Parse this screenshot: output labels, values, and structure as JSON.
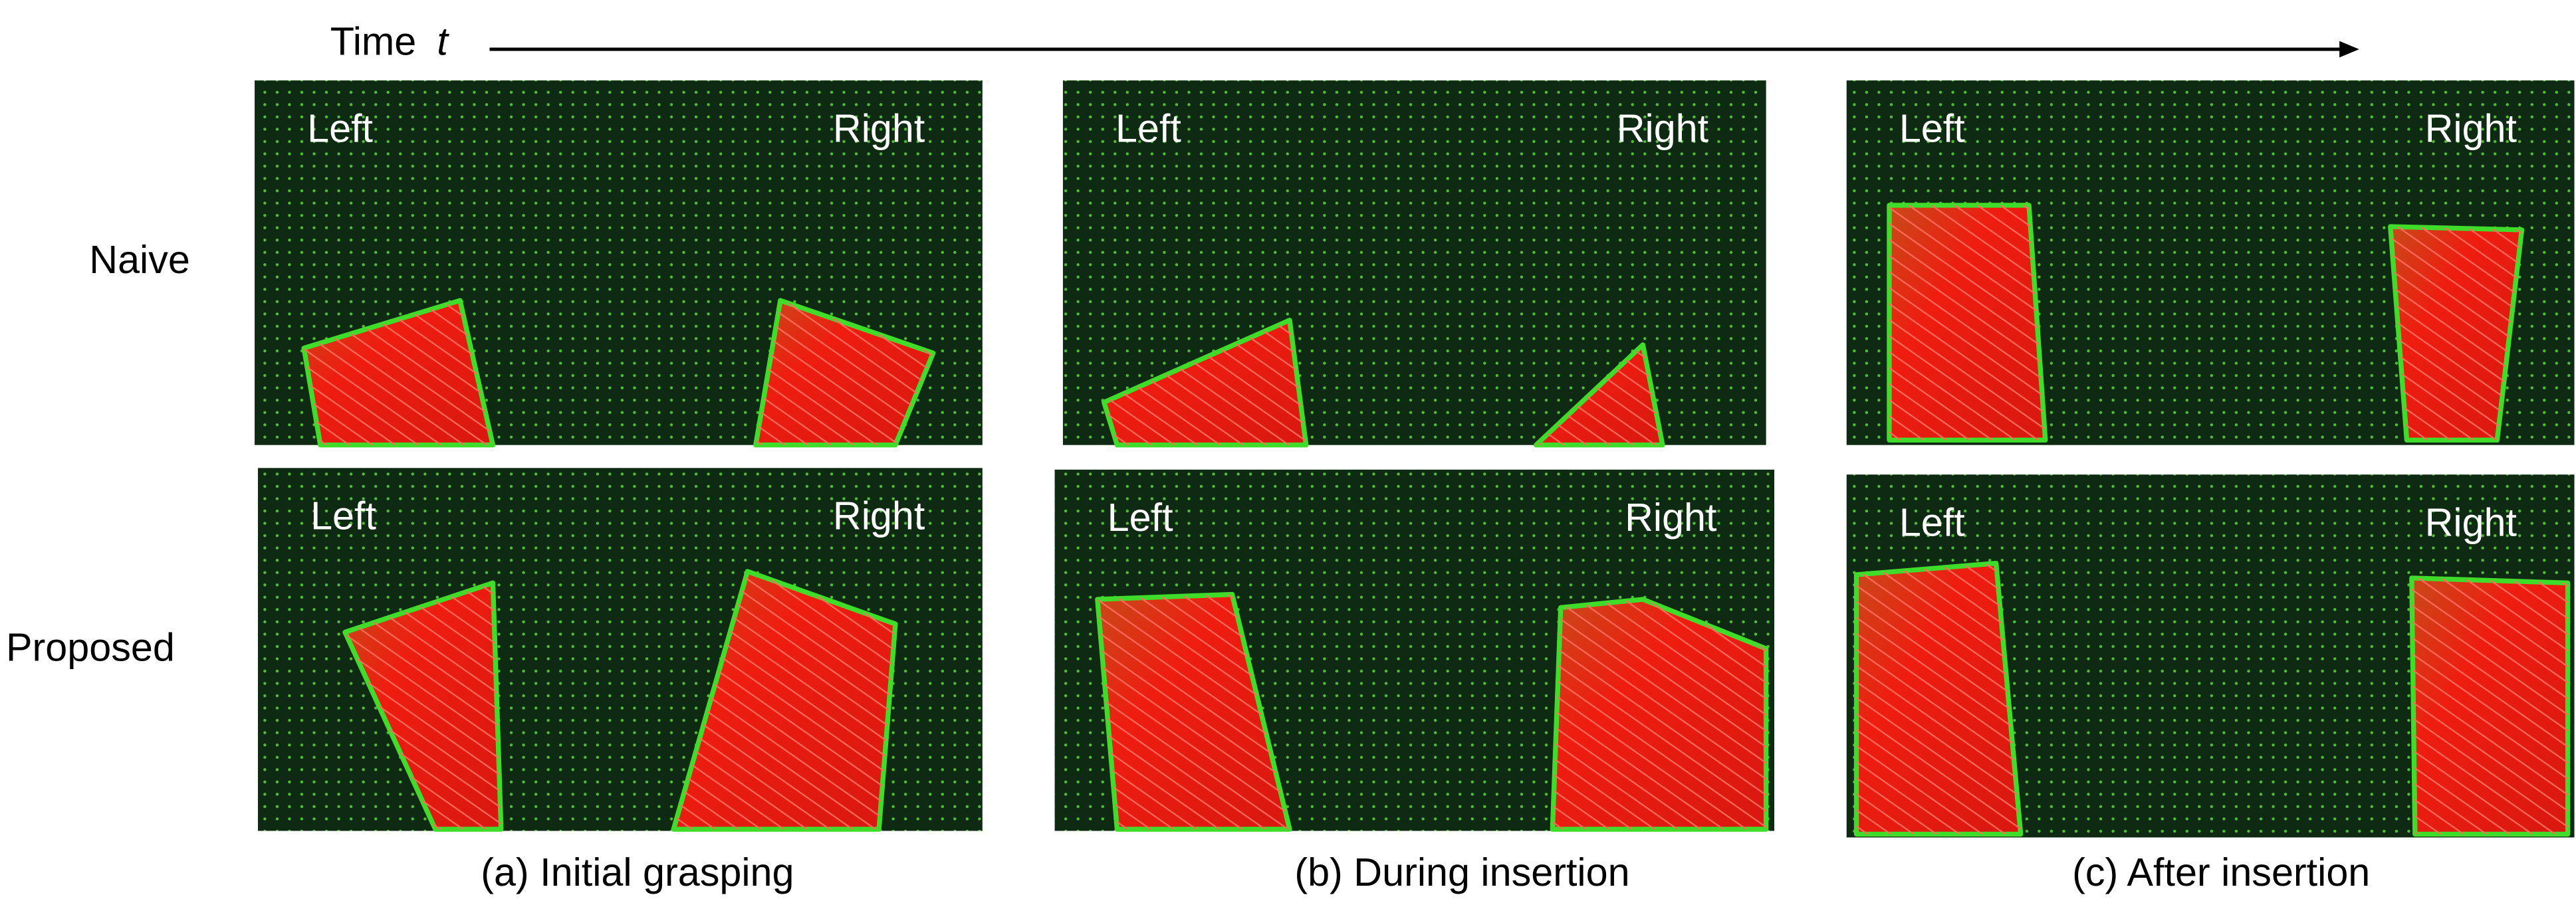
{
  "header": {
    "time_label": "Time",
    "time_symbol": "t"
  },
  "rows": [
    "Naive",
    "Proposed"
  ],
  "panels": [
    {
      "left": "Left",
      "right": "Right"
    },
    {
      "left": "Left",
      "right": "Right"
    },
    {
      "left": "Left",
      "right": "Right"
    },
    {
      "left": "Left",
      "right": "Right"
    },
    {
      "left": "Left",
      "right": "Right"
    },
    {
      "left": "Left",
      "right": "Right"
    }
  ],
  "captions": [
    "(a) Initial grasping",
    "(b) During insertion",
    "(c) After insertion"
  ]
}
